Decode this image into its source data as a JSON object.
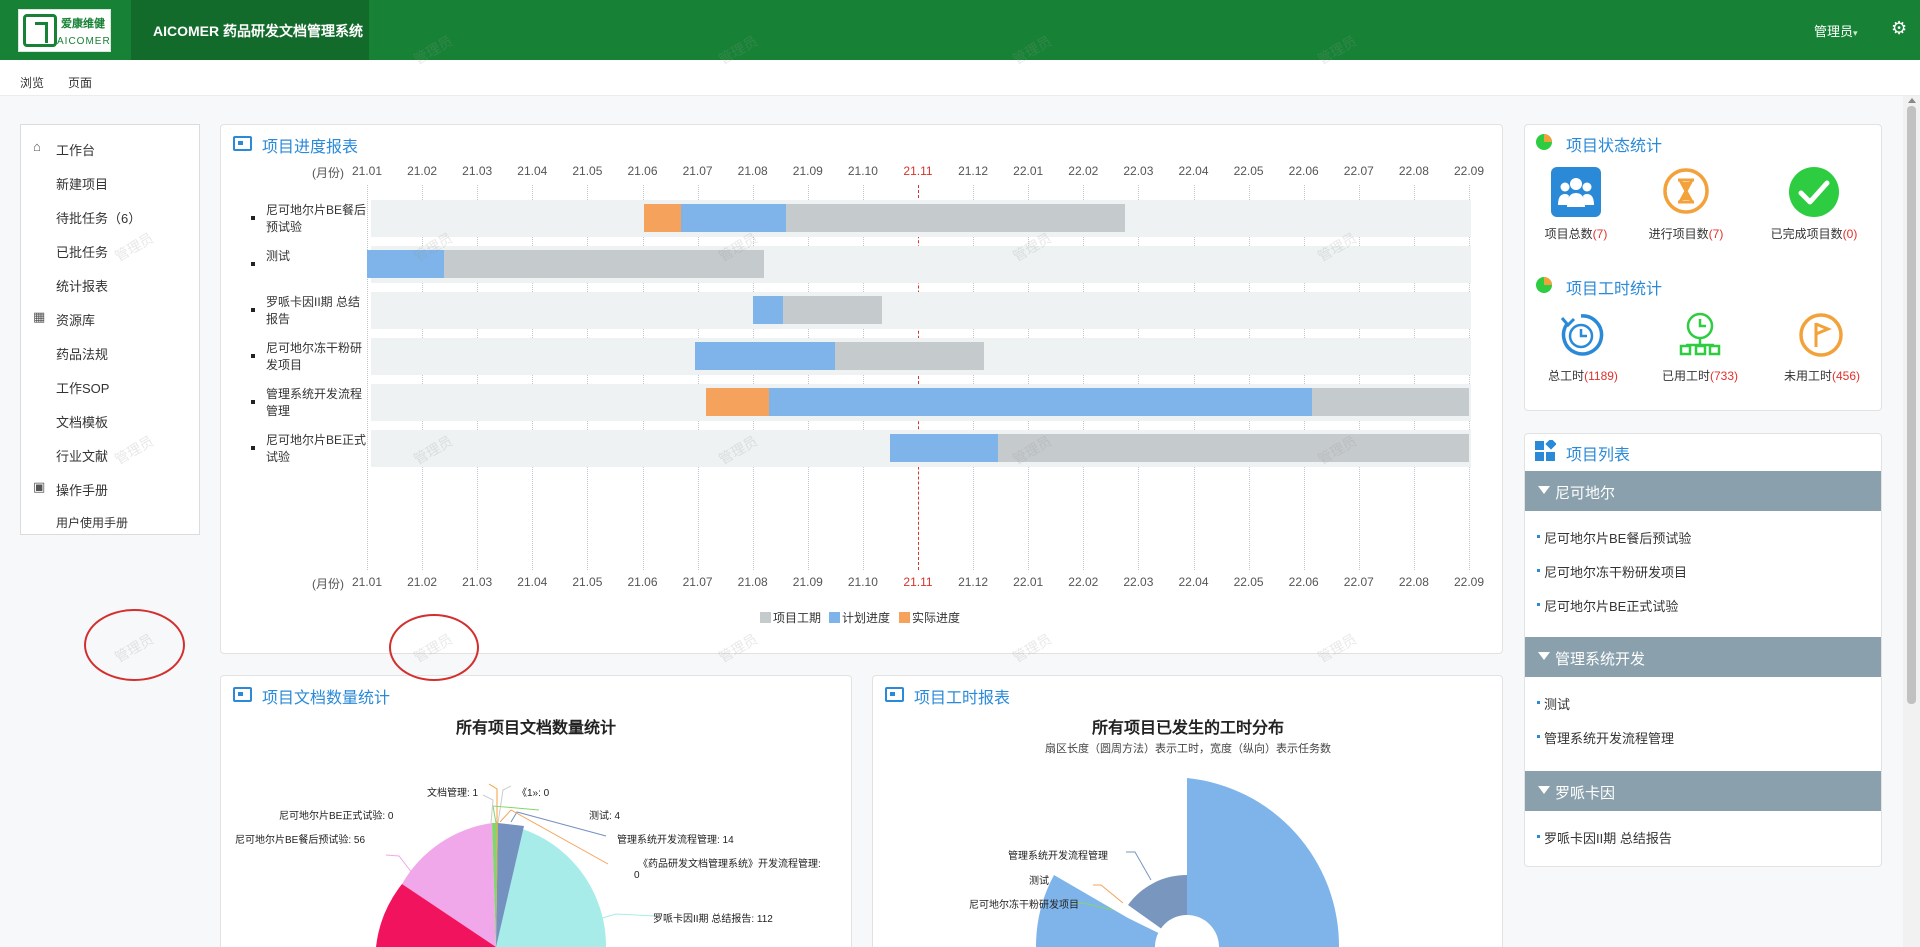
{
  "brand": {
    "logo_cn": "爱康维健",
    "logo_en": "AICOMER",
    "app_title": "AICOMER 药品研发文档管理系统"
  },
  "header": {
    "user": "管理员",
    "user_caret": "▾",
    "gear": "⚙"
  },
  "subnav": {
    "browse": "浏览",
    "page": "页面"
  },
  "watermark": "管理员",
  "sidebar": {
    "items": [
      {
        "label": "工作台",
        "icon": "home-icon",
        "glyph": "⌂",
        "type": "section"
      },
      {
        "label": "新建项目",
        "type": "child"
      },
      {
        "label": "待批任务（6）",
        "type": "child"
      },
      {
        "label": "已批任务",
        "type": "child"
      },
      {
        "label": "统计报表",
        "type": "child"
      },
      {
        "label": "资源库",
        "icon": "grid-icon",
        "glyph": "▦",
        "type": "section"
      },
      {
        "label": "药品法规",
        "type": "child"
      },
      {
        "label": "工作SOP",
        "type": "child"
      },
      {
        "label": "文档模板",
        "type": "child"
      },
      {
        "label": "行业文献",
        "type": "child"
      },
      {
        "label": "操作手册",
        "icon": "dashboard-icon",
        "glyph": "▣",
        "type": "section"
      },
      {
        "label": "用户使用手册",
        "type": "child"
      }
    ]
  },
  "gantt": {
    "title": "项目进度报表",
    "month_label": "(月份)",
    "months": [
      "21.01",
      "21.02",
      "21.03",
      "21.04",
      "21.05",
      "21.06",
      "21.07",
      "21.08",
      "21.09",
      "21.10",
      "21.11",
      "21.12",
      "22.01",
      "22.02",
      "22.03",
      "22.04",
      "22.05",
      "22.06",
      "22.07",
      "22.08",
      "22.09"
    ],
    "current_month": "21.11",
    "colors": {
      "period": "#c5cacd",
      "plan": "#7eb4ea",
      "actual": "#f5a35c",
      "current_line": "#d8342c"
    },
    "legend": [
      {
        "label": "项目工期",
        "color": "#c5cacd"
      },
      {
        "label": "计划进度",
        "color": "#7eb4ea"
      },
      {
        "label": "实际进度",
        "color": "#f5a35c"
      }
    ],
    "rows": [
      {
        "label": "尼可地尔片BE餐后预试验",
        "period": [
          5.02,
          13.75
        ],
        "plan": [
          5.7,
          7.6
        ],
        "actual": [
          5.02,
          5.7
        ]
      },
      {
        "label": "测试",
        "period": [
          0.0,
          7.2
        ],
        "plan": [
          0.0,
          1.4
        ],
        "actual": null
      },
      {
        "label": "罗哌卡因II期 总结报告",
        "period": [
          7.0,
          9.35
        ],
        "plan": [
          7.0,
          7.55
        ],
        "actual": null
      },
      {
        "label": "尼可地尔冻干粉研发项目",
        "period": [
          5.95,
          11.2
        ],
        "plan": [
          5.95,
          8.5
        ],
        "actual": null
      },
      {
        "label": "管理系统开发流程管理",
        "period": [
          6.15,
          20.0
        ],
        "plan": [
          7.3,
          17.15
        ],
        "actual": [
          6.15,
          7.3
        ]
      },
      {
        "label": "尼可地尔片BE正式试验",
        "period": [
          9.5,
          20.0
        ],
        "plan": [
          9.5,
          11.45
        ],
        "actual": null
      }
    ]
  },
  "status_stats": {
    "title": "项目状态统计",
    "items": [
      {
        "label": "项目总数",
        "value": "(7)",
        "color": "#2a8ad8",
        "icon": "people-icon"
      },
      {
        "label": "进行项目数",
        "value": "(7)",
        "color": "#f3a23b",
        "icon": "hourglass-icon"
      },
      {
        "label": "已完成项目数",
        "value": "(0)",
        "color": "#2ecc40",
        "icon": "check-icon"
      }
    ]
  },
  "hours_stats": {
    "title": "项目工时统计",
    "items": [
      {
        "label": "总工时",
        "value": "(1189)",
        "color": "#2a8ad8",
        "icon": "clock-refresh-icon"
      },
      {
        "label": "已用工时",
        "value": "(733)",
        "color": "#2ecc40",
        "icon": "clock-network-icon"
      },
      {
        "label": "未用工时",
        "value": "(456)",
        "color": "#f3a23b",
        "icon": "flag-icon"
      }
    ]
  },
  "project_list": {
    "title": "项目列表",
    "groups": [
      {
        "name": "尼可地尔",
        "items": [
          "尼可地尔片BE餐后预试验",
          "尼可地尔冻干粉研发项目",
          "尼可地尔片BE正式试验"
        ]
      },
      {
        "name": "管理系统开发",
        "items": [
          "测试",
          "管理系统开发流程管理"
        ]
      },
      {
        "name": "罗哌卡因",
        "items": [
          "罗哌卡因II期 总结报告"
        ]
      }
    ]
  },
  "doc_stats": {
    "panel_title": "项目文档数量统计",
    "chart_title": "所有项目文档数量统计",
    "labels": [
      "文档管理: 1",
      "《1»: 0",
      "测试: 4",
      "管理系统开发流程管理: 14",
      "《药品研发文档管理系统》开发流程管理:",
      "0",
      "罗哌卡因II期 总结报告: 112",
      "尼可地尔片BE正式试验: 0",
      "尼可地尔片BE餐后预试验: 56"
    ]
  },
  "hours_report": {
    "panel_title": "项目工时报表",
    "chart_title": "所有项目已发生的工时分布",
    "chart_sub": "扇区长度（圆周方法）表示工时，宽度（纵向）表示任务数",
    "labels": [
      "管理系统开发流程管理",
      "测试",
      "尼可地尔冻干粉研发项目"
    ]
  },
  "chart_data": [
    {
      "type": "bar",
      "title": "项目进度报表",
      "categories": [
        "尼可地尔片BE餐后预试验",
        "测试",
        "罗哌卡因II期 总结报告",
        "尼可地尔冻干粉研发项目",
        "管理系统开发流程管理",
        "尼可地尔片BE正式试验"
      ],
      "xlabel": "(月份)",
      "xticks": [
        "21.01",
        "21.02",
        "21.03",
        "21.04",
        "21.05",
        "21.06",
        "21.07",
        "21.08",
        "21.09",
        "21.10",
        "21.11",
        "21.12",
        "22.01",
        "22.02",
        "22.03",
        "22.04",
        "22.05",
        "22.06",
        "22.07",
        "22.08",
        "22.09"
      ],
      "series": [
        {
          "name": "项目工期",
          "values": [
            [
              "21.06",
              "22.02"
            ],
            [
              "21.01",
              "21.08"
            ],
            [
              "21.08",
              "21.10"
            ],
            [
              "21.07",
              "21.12"
            ],
            [
              "21.07",
              "22.09"
            ],
            [
              "21.10",
              "22.09"
            ]
          ]
        },
        {
          "name": "计划进度",
          "values": [
            [
              "21.06",
              "21.08"
            ],
            [
              "21.01",
              "21.02"
            ],
            [
              "21.08",
              "21.08"
            ],
            [
              "21.07",
              "21.09"
            ],
            [
              "21.08",
              "22.06"
            ],
            [
              "21.10",
              "21.12"
            ]
          ]
        },
        {
          "name": "实际进度",
          "values": [
            [
              "21.06",
              "21.06"
            ],
            null,
            null,
            null,
            [
              "21.07",
              "21.08"
            ],
            null
          ]
        }
      ],
      "legend": "bottom-center"
    },
    {
      "type": "pie",
      "title": "所有项目文档数量统计",
      "categories": [
        "文档管理",
        "《1»",
        "测试",
        "管理系统开发流程管理",
        "《药品研发文档管理系统》开发流程管理",
        "罗哌卡因II期 总结报告",
        "尼可地尔片BE正式试验",
        "尼可地尔片BE餐后预试验"
      ],
      "values": [
        1,
        0,
        4,
        14,
        0,
        112,
        0,
        56
      ]
    },
    {
      "type": "pie",
      "title": "所有项目已发生的工时分布",
      "subtitle": "扇区长度（圆周方法）表示工时，宽度（纵向）表示任务数",
      "categories": [
        "管理系统开发流程管理",
        "测试",
        "尼可地尔冻干粉研发项目"
      ]
    }
  ]
}
